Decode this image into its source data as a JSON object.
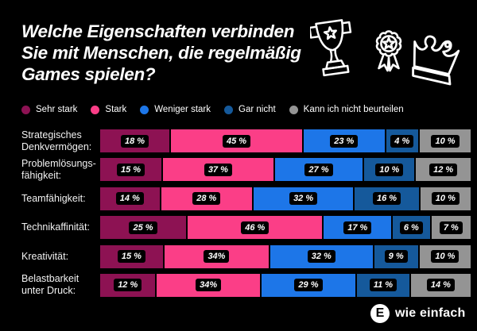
{
  "title": {
    "lines": [
      "Welche Eigenschaften verbinden",
      "Sie mit Menschen, die regelmäßig",
      "Games spielen?"
    ]
  },
  "header_icons": [
    {
      "name": "trophy-icon"
    },
    {
      "name": "medal-icon"
    },
    {
      "name": "crown-icon"
    }
  ],
  "legend": [
    {
      "label": "Sehr stark",
      "color": "#8D1253"
    },
    {
      "label": "Stark",
      "color": "#FB3E87"
    },
    {
      "label": "Weniger stark",
      "color": "#1D76E8"
    },
    {
      "label": "Gar nicht",
      "color": "#15599B"
    },
    {
      "label": "Kann ich nicht beurteilen",
      "color": "#949494"
    }
  ],
  "chart_data": {
    "type": "bar",
    "stacked": true,
    "orientation": "horizontal",
    "xlim": [
      0,
      100
    ],
    "categories": [
      {
        "lines": [
          "Strategisches",
          "Denkvermögen:"
        ]
      },
      {
        "lines": [
          "Problemlösungs-",
          "fähigkeit:"
        ]
      },
      {
        "lines": [
          "Teamfähigkeit:"
        ]
      },
      {
        "lines": [
          "Technikaffinität:"
        ]
      },
      {
        "lines": [
          "Kreativität:"
        ]
      },
      {
        "lines": [
          "Belastbarkeit",
          "unter Druck:"
        ]
      }
    ],
    "series": [
      {
        "name": "Sehr stark",
        "color": "#8D1253",
        "values": [
          18,
          15,
          14,
          25,
          15,
          12
        ]
      },
      {
        "name": "Stark",
        "color": "#FB3E87",
        "values": [
          45,
          37,
          28,
          46,
          34,
          34
        ]
      },
      {
        "name": "Weniger stark",
        "color": "#1D76E8",
        "values": [
          23,
          27,
          32,
          17,
          32,
          29
        ]
      },
      {
        "name": "Gar nicht",
        "color": "#15599B",
        "values": [
          4,
          10,
          16,
          6,
          9,
          11
        ]
      },
      {
        "name": "Kann ich nicht beurteilen",
        "color": "#949494",
        "values": [
          10,
          12,
          10,
          7,
          10,
          14
        ]
      }
    ],
    "value_labels": [
      [
        "18 %",
        "45 %",
        "23 %",
        "4 %",
        "10 %"
      ],
      [
        "15 %",
        "37 %",
        "27 %",
        "10 %",
        "12 %"
      ],
      [
        "14 %",
        "28 %",
        "32 %",
        "16 %",
        "10 %"
      ],
      [
        "25 %",
        "46 %",
        "17 %",
        "6 %",
        "7 %"
      ],
      [
        "15 %",
        "34%",
        "32 %",
        "9 %",
        "10 %"
      ],
      [
        "12 %",
        "34%",
        "29 %",
        "11 %",
        "14 %"
      ]
    ]
  },
  "footer": {
    "logo_letter": "E",
    "logo_text": "wie einfach"
  },
  "colors": {
    "background": "#000000",
    "label_box": "#000000",
    "text": "#FFFFFF"
  }
}
